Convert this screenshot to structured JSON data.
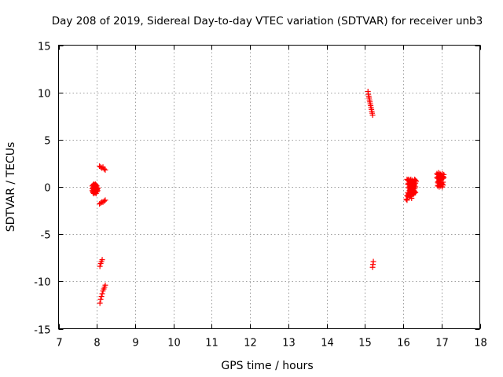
{
  "chart_data": {
    "type": "scatter",
    "title": "Day 208 of 2019, Sidereal Day-to-day VTEC variation (SDTVAR) for receiver unb3",
    "xlabel": "GPS time / hours",
    "ylabel": "SDTVAR / TECUs",
    "xlim": [
      7,
      18
    ],
    "ylim": [
      -15,
      15
    ],
    "xticks": [
      7,
      8,
      9,
      10,
      11,
      12,
      13,
      14,
      15,
      16,
      17,
      18
    ],
    "yticks": [
      -15,
      -10,
      -5,
      0,
      5,
      10,
      15
    ],
    "grid": true,
    "marker": "+",
    "color": "#ff0000",
    "series": [
      {
        "name": "SDTVAR",
        "x": [
          7.88,
          7.9,
          7.92,
          7.94,
          7.96,
          7.98,
          8.0,
          8.02,
          7.88,
          7.9,
          7.92,
          7.94,
          7.96,
          7.98,
          8.0,
          8.02,
          7.88,
          7.9,
          7.92,
          7.94,
          7.96,
          7.98,
          8.0,
          8.02,
          7.9,
          7.92,
          7.94,
          7.96,
          7.98,
          8.0,
          7.92,
          7.94,
          7.96,
          7.98,
          8.07,
          8.1,
          8.13,
          8.16,
          8.19,
          8.22,
          8.07,
          8.1,
          8.13,
          8.16,
          8.19,
          8.22,
          8.08,
          8.1,
          8.12,
          8.14,
          8.08,
          8.1,
          8.12,
          8.14,
          8.16,
          8.18,
          8.2,
          8.22,
          15.08,
          15.09,
          15.1,
          15.11,
          15.12,
          15.13,
          15.14,
          15.15,
          15.16,
          15.17,
          15.18,
          15.19,
          15.2,
          15.2,
          15.21,
          15.22,
          16.1,
          16.12,
          16.14,
          16.16,
          16.18,
          16.2,
          16.22,
          16.24,
          16.26,
          16.28,
          16.3,
          16.32,
          16.34,
          16.12,
          16.14,
          16.16,
          16.18,
          16.2,
          16.22,
          16.24,
          16.26,
          16.28,
          16.3,
          16.32,
          16.14,
          16.16,
          16.18,
          16.2,
          16.22,
          16.24,
          16.26,
          16.28,
          16.3,
          16.32,
          16.16,
          16.18,
          16.2,
          16.22,
          16.24,
          16.26,
          16.28,
          16.3,
          16.12,
          16.14,
          16.16,
          16.18,
          16.2,
          16.22,
          16.24,
          16.26,
          16.28,
          16.3,
          16.32,
          16.1,
          16.12,
          16.14,
          16.16,
          16.18,
          16.2,
          16.22,
          16.08,
          16.1,
          16.88,
          16.9,
          16.92,
          16.94,
          16.96,
          16.98,
          17.0,
          17.02,
          17.04,
          17.06,
          16.88,
          16.9,
          16.92,
          16.94,
          16.96,
          16.98,
          17.0,
          17.02,
          17.04,
          17.06,
          16.9,
          16.92,
          16.94,
          16.96,
          16.98,
          17.0,
          17.02,
          17.04,
          16.9,
          16.92,
          16.94,
          16.96,
          16.98,
          17.0,
          17.02,
          17.04,
          16.92,
          16.94,
          16.96,
          16.98,
          17.0
        ],
        "y": [
          -0.2,
          -0.1,
          -0.3,
          0.0,
          -0.2,
          -0.1,
          -0.3,
          -0.2,
          -0.4,
          -0.5,
          -0.3,
          -0.6,
          -0.4,
          -0.5,
          -0.3,
          -0.4,
          0.1,
          0.2,
          0.0,
          0.1,
          0.2,
          0.0,
          0.1,
          -0.1,
          -0.6,
          -0.7,
          -0.5,
          -0.6,
          -0.7,
          -0.5,
          0.3,
          0.2,
          0.3,
          0.2,
          2.2,
          2.1,
          2.0,
          2.1,
          1.9,
          1.8,
          -1.8,
          -1.7,
          -1.6,
          -1.6,
          -1.5,
          -1.4,
          -8.4,
          -8.1,
          -7.9,
          -7.7,
          -12.3,
          -11.9,
          -11.6,
          -11.3,
          -11.0,
          -10.8,
          -10.6,
          -10.4,
          10.1,
          9.8,
          9.6,
          9.4,
          9.2,
          9.0,
          8.8,
          8.6,
          8.4,
          8.2,
          8.0,
          7.8,
          7.6,
          -8.5,
          -8.2,
          -7.9,
          0.8,
          0.7,
          0.8,
          0.6,
          0.7,
          0.8,
          0.6,
          0.7,
          0.5,
          0.6,
          0.8,
          0.7,
          0.6,
          0.3,
          0.4,
          0.2,
          0.3,
          0.4,
          0.2,
          0.3,
          0.1,
          0.3,
          0.2,
          0.4,
          -0.1,
          0.0,
          -0.2,
          -0.1,
          0.0,
          -0.2,
          -0.1,
          0.1,
          -0.2,
          0.0,
          -0.4,
          -0.3,
          -0.5,
          -0.4,
          -0.3,
          -0.5,
          -0.4,
          -0.6,
          -0.6,
          -0.7,
          -0.8,
          -0.6,
          -0.7,
          -0.5,
          -0.6,
          -0.8,
          -0.7,
          -0.5,
          -0.6,
          -0.9,
          -1.0,
          -0.8,
          -1.1,
          -0.9,
          -1.0,
          -1.2,
          -1.3,
          -1.4,
          1.4,
          1.3,
          1.5,
          1.2,
          1.4,
          1.3,
          1.2,
          1.4,
          1.1,
          1.3,
          1.0,
          0.9,
          1.1,
          0.8,
          1.0,
          0.9,
          0.8,
          1.1,
          0.9,
          1.0,
          0.5,
          0.4,
          0.6,
          0.3,
          0.5,
          0.4,
          0.3,
          0.5,
          0.1,
          0.2,
          0.0,
          0.2,
          0.1,
          0.3,
          0.0,
          0.2,
          0.6,
          0.7,
          0.8,
          0.7,
          0.9
        ]
      }
    ]
  }
}
